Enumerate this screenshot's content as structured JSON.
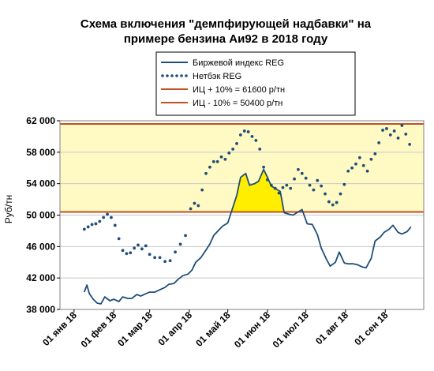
{
  "chart_data": {
    "type": "line",
    "title_lines": [
      "Схема включения \"демпфирующей надбавки\" на",
      "примере бензина Аи92 в 2018 году"
    ],
    "xlabel": "",
    "ylabel": "Руб/тн",
    "ylim": [
      38000,
      62000
    ],
    "ytick_labels": [
      "38 000",
      "42 000",
      "46 000",
      "50 000",
      "54 000",
      "58 000",
      "62 000"
    ],
    "ytick_values": [
      38000,
      42000,
      46000,
      50000,
      54000,
      58000,
      62000
    ],
    "xlim": [
      "2017-12-21",
      "2018-10-01"
    ],
    "xtick_labels": [
      "01 янв 18",
      "01 фев 18",
      "01 мар 18",
      "01 апр 18",
      "01 май 18",
      "01 июн 18",
      "01 июл 18",
      "01 авг 18",
      "01 сен 18"
    ],
    "xtick_values": [
      "2018-01-01",
      "2018-02-01",
      "2018-03-01",
      "2018-04-01",
      "2018-05-01",
      "2018-06-01",
      "2018-07-01",
      "2018-08-01",
      "2018-09-01"
    ],
    "band": {
      "low": 50400,
      "high": 61600,
      "color": "#fff9c4"
    },
    "fill_color": "#ffee00",
    "legend": [
      {
        "label": "Биржевой индекс REG",
        "style": "solid",
        "color": "#1f4e79"
      },
      {
        "label": "Нетбэк REG",
        "style": "dotted",
        "color": "#1f4e79"
      },
      {
        "label": "ИЦ + 10% = 61600 р/тн",
        "style": "solid",
        "color": "#c0501f"
      },
      {
        "label": "ИЦ - 10% = 50400 р/тн",
        "style": "solid",
        "color": "#c0501f"
      }
    ],
    "series": [
      {
        "name": "Биржевой индекс REG",
        "style": "solid",
        "color": "#1f4e79",
        "x": [
          "2018-01-09",
          "2018-01-11",
          "2018-01-13",
          "2018-01-16",
          "2018-01-19",
          "2018-01-22",
          "2018-01-25",
          "2018-01-29",
          "2018-02-01",
          "2018-02-05",
          "2018-02-08",
          "2018-02-12",
          "2018-02-15",
          "2018-02-19",
          "2018-02-22",
          "2018-02-26",
          "2018-03-01",
          "2018-03-05",
          "2018-03-09",
          "2018-03-13",
          "2018-03-16",
          "2018-03-20",
          "2018-03-23",
          "2018-03-27",
          "2018-03-31",
          "2018-04-03",
          "2018-04-06",
          "2018-04-10",
          "2018-04-13",
          "2018-04-17",
          "2018-04-20",
          "2018-04-24",
          "2018-04-27",
          "2018-05-01",
          "2018-05-04",
          "2018-05-08",
          "2018-05-11",
          "2018-05-15",
          "2018-05-18",
          "2018-05-22",
          "2018-05-25",
          "2018-05-29",
          "2018-06-01",
          "2018-06-04",
          "2018-06-07",
          "2018-06-11",
          "2018-06-14",
          "2018-06-18",
          "2018-06-21",
          "2018-06-25",
          "2018-06-28",
          "2018-07-02",
          "2018-07-06",
          "2018-07-10",
          "2018-07-13",
          "2018-07-17",
          "2018-07-20",
          "2018-07-24",
          "2018-07-27",
          "2018-07-31",
          "2018-08-03",
          "2018-08-07",
          "2018-08-10",
          "2018-08-14",
          "2018-08-17",
          "2018-08-21",
          "2018-08-24",
          "2018-08-28",
          "2018-08-31",
          "2018-09-04",
          "2018-09-07",
          "2018-09-11",
          "2018-09-14",
          "2018-09-18",
          "2018-09-21"
        ],
        "values": [
          40200,
          41100,
          40000,
          39300,
          38800,
          38700,
          39600,
          39100,
          39300,
          39000,
          39600,
          39400,
          39400,
          39900,
          39700,
          40000,
          40200,
          40200,
          40500,
          40800,
          41200,
          41300,
          41800,
          42300,
          42500,
          43000,
          44000,
          44600,
          45300,
          46300,
          47400,
          48100,
          48600,
          49000,
          50500,
          52500,
          54800,
          55300,
          53800,
          54000,
          54300,
          55800,
          54800,
          53700,
          53400,
          53000,
          50300,
          50100,
          50000,
          50400,
          50700,
          48900,
          48800,
          47500,
          45800,
          44400,
          43500,
          44000,
          45300,
          43900,
          43800,
          43800,
          43700,
          43400,
          43300,
          44500,
          46700,
          47200,
          47800,
          48200,
          48700,
          47800,
          47600,
          47900,
          48500
        ]
      },
      {
        "name": "Нетбэк REG",
        "style": "dotted",
        "color": "#1f4e79",
        "x": [
          "2018-01-09",
          "2018-01-12",
          "2018-01-15",
          "2018-01-18",
          "2018-01-21",
          "2018-01-24",
          "2018-01-27",
          "2018-01-30",
          "2018-02-02",
          "2018-02-05",
          "2018-02-08",
          "2018-02-11",
          "2018-02-14",
          "2018-02-17",
          "2018-02-20",
          "2018-02-23",
          "2018-02-26",
          "2018-03-01",
          "2018-03-05",
          "2018-03-09",
          "2018-03-13",
          "2018-03-17",
          "2018-03-21",
          "2018-03-25",
          "2018-03-29",
          "2018-04-02",
          "2018-04-05",
          "2018-04-08",
          "2018-04-11",
          "2018-04-14",
          "2018-04-17",
          "2018-04-20",
          "2018-04-23",
          "2018-04-26",
          "2018-04-29",
          "2018-05-02",
          "2018-05-05",
          "2018-05-08",
          "2018-05-11",
          "2018-05-14",
          "2018-05-17",
          "2018-05-20",
          "2018-05-23",
          "2018-05-26",
          "2018-05-29",
          "2018-06-01",
          "2018-06-04",
          "2018-06-07",
          "2018-06-10",
          "2018-06-13",
          "2018-06-16",
          "2018-06-19",
          "2018-06-22",
          "2018-06-25",
          "2018-06-28",
          "2018-07-01",
          "2018-07-04",
          "2018-07-07",
          "2018-07-10",
          "2018-07-13",
          "2018-07-16",
          "2018-07-19",
          "2018-07-22",
          "2018-07-25",
          "2018-07-28",
          "2018-07-31",
          "2018-08-03",
          "2018-08-06",
          "2018-08-09",
          "2018-08-12",
          "2018-08-15",
          "2018-08-18",
          "2018-08-21",
          "2018-08-24",
          "2018-08-27",
          "2018-08-30",
          "2018-09-02",
          "2018-09-05",
          "2018-09-08",
          "2018-09-11",
          "2018-09-14",
          "2018-09-17",
          "2018-09-20"
        ],
        "values": [
          48200,
          48500,
          48800,
          48900,
          49200,
          49700,
          50100,
          49700,
          48700,
          47000,
          45500,
          45100,
          45200,
          45800,
          46200,
          45700,
          46100,
          45000,
          44600,
          44600,
          44100,
          44200,
          45300,
          46300,
          47400,
          50800,
          51500,
          51200,
          53200,
          55300,
          56100,
          56800,
          56800,
          57400,
          57100,
          57900,
          58400,
          59100,
          60200,
          60700,
          60600,
          60000,
          59500,
          58400,
          56100,
          54500,
          53800,
          53400,
          52800,
          53500,
          53800,
          53400,
          54600,
          55800,
          55300,
          54700,
          53800,
          53200,
          54400,
          53700,
          52700,
          51700,
          51300,
          51600,
          52700,
          53900,
          55600,
          56000,
          56500,
          57300,
          56300,
          55600,
          57100,
          57800,
          59200,
          60800,
          61000,
          60200,
          60700,
          59800,
          61400,
          60300,
          59000
        ]
      }
    ]
  }
}
